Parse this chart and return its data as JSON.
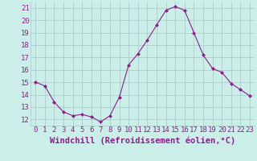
{
  "hours": [
    0,
    1,
    2,
    3,
    4,
    5,
    6,
    7,
    8,
    9,
    10,
    11,
    12,
    13,
    14,
    15,
    16,
    17,
    18,
    19,
    20,
    21,
    22,
    23
  ],
  "values": [
    15.0,
    14.7,
    13.4,
    12.6,
    12.3,
    12.4,
    12.2,
    11.8,
    12.3,
    13.8,
    16.4,
    17.3,
    18.4,
    19.6,
    20.8,
    21.1,
    20.8,
    19.0,
    17.2,
    16.1,
    15.8,
    14.9,
    14.4,
    13.9
  ],
  "line_color": "#882288",
  "marker": "D",
  "marker_size": 2.0,
  "bg_color": "#cceee8",
  "grid_color": "#aacccc",
  "xlabel": "Windchill (Refroidissement éolien,°C)",
  "xlim": [
    -0.5,
    23.5
  ],
  "ylim": [
    11.5,
    21.5
  ],
  "yticks": [
    12,
    13,
    14,
    15,
    16,
    17,
    18,
    19,
    20,
    21
  ],
  "xtick_labels": [
    "0",
    "1",
    "2",
    "3",
    "4",
    "5",
    "6",
    "7",
    "8",
    "9",
    "10",
    "11",
    "12",
    "13",
    "14",
    "15",
    "16",
    "17",
    "18",
    "19",
    "20",
    "21",
    "22",
    "23"
  ],
  "tick_color": "#882288",
  "label_color": "#882288",
  "font_size": 6.5,
  "xlabel_font_size": 7.5
}
